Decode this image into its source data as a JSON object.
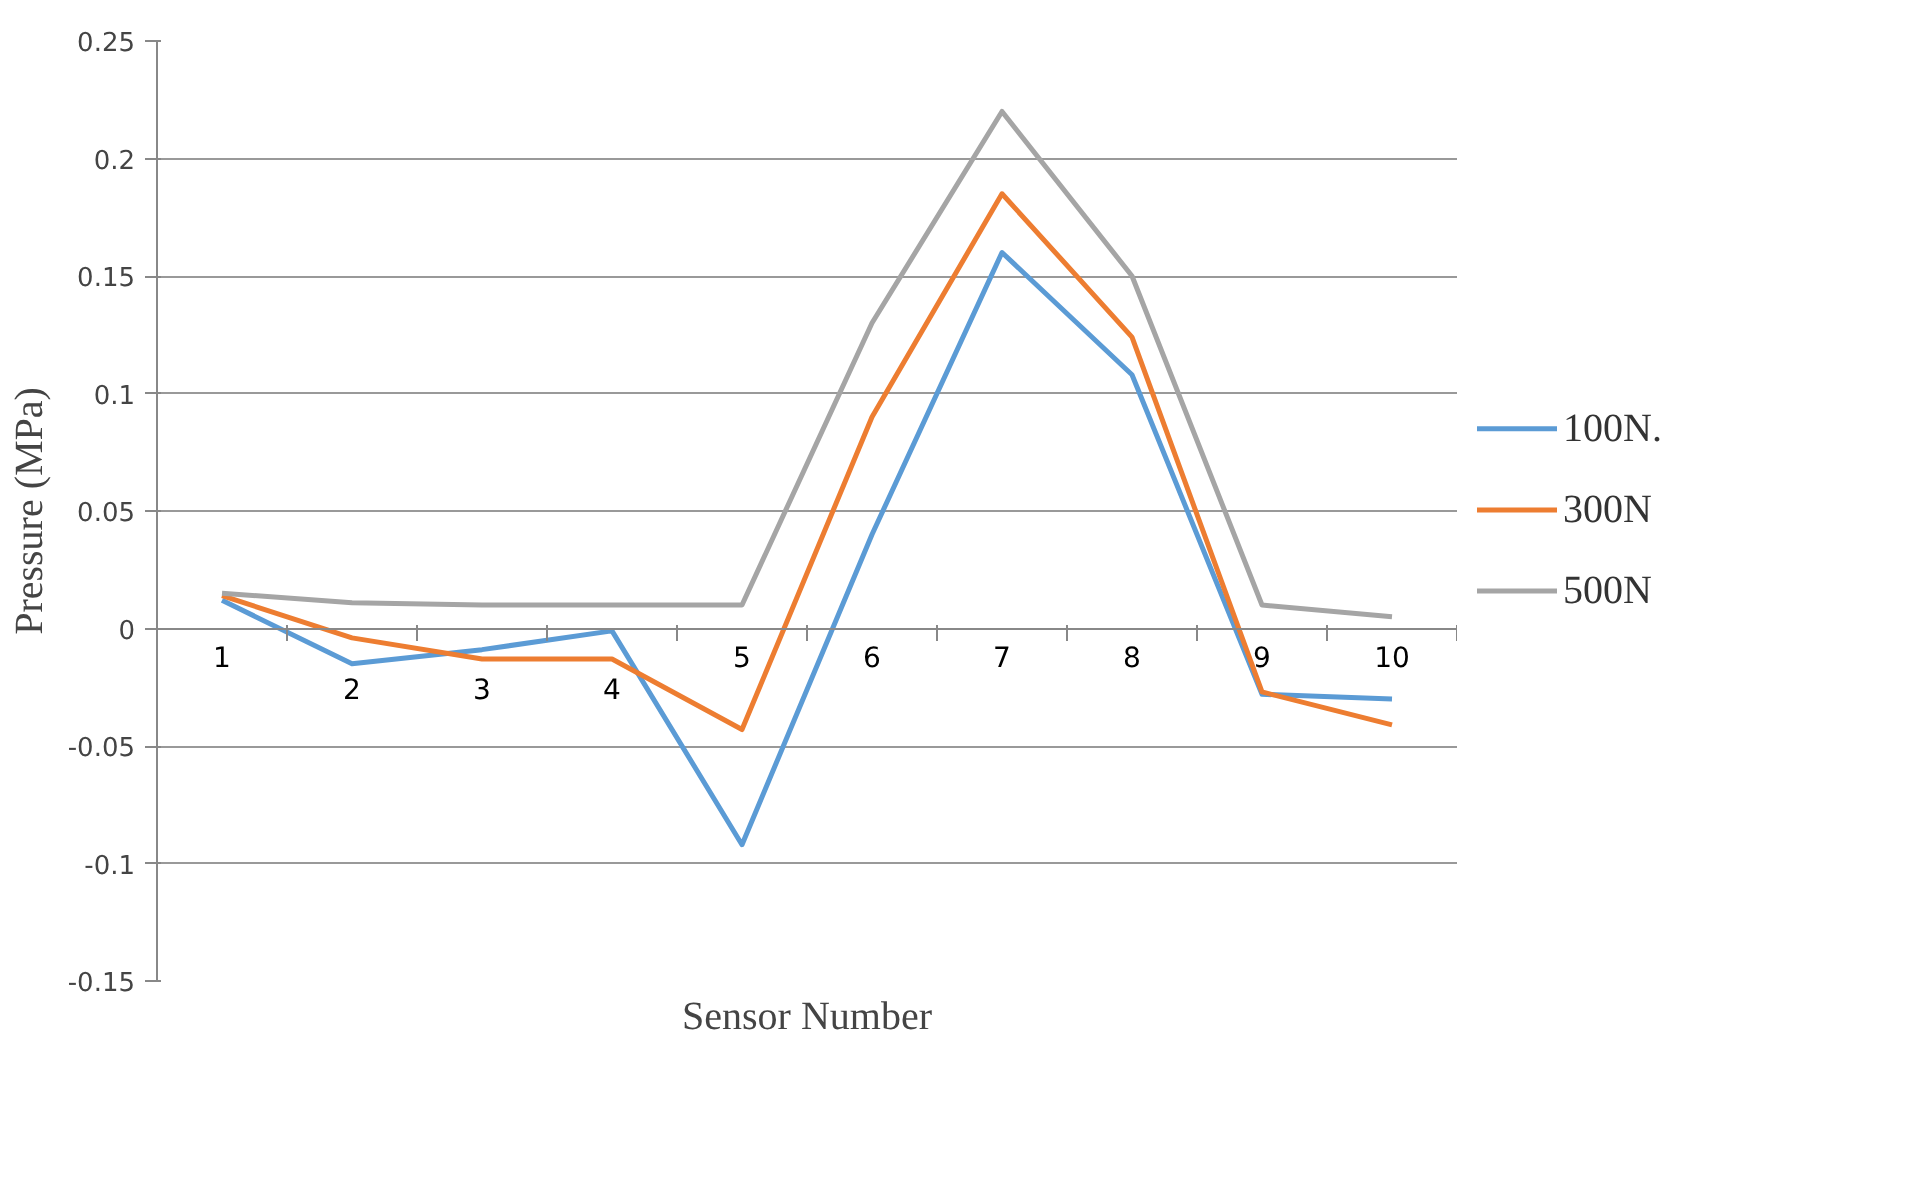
{
  "chart_data": {
    "type": "line",
    "xlabel": "Sensor Number",
    "ylabel": "Pressure (MPa)",
    "categories": [
      "1",
      "2",
      "3",
      "4",
      "5",
      "6",
      "7",
      "8",
      "9",
      "10"
    ],
    "series": [
      {
        "name": "100N.",
        "color": "#5b9bd5",
        "values": [
          0.012,
          -0.015,
          -0.009,
          -0.001,
          -0.092,
          0.04,
          0.16,
          0.108,
          -0.028,
          -0.03
        ]
      },
      {
        "name": "300N",
        "color": "#ed7d31",
        "values": [
          0.014,
          -0.004,
          -0.013,
          -0.013,
          -0.043,
          0.09,
          0.185,
          0.124,
          -0.027,
          -0.041
        ]
      },
      {
        "name": "500N",
        "color": "#a5a5a5",
        "values": [
          0.015,
          0.011,
          0.01,
          0.01,
          0.01,
          0.13,
          0.22,
          0.15,
          0.01,
          0.005
        ]
      }
    ],
    "ylim": [
      -0.15,
      0.25
    ],
    "yticks": [
      -0.15,
      -0.1,
      -0.05,
      0,
      0.05,
      0.1,
      0.15,
      0.2,
      0.25
    ],
    "grid": "y",
    "legend": "right",
    "marker": "none",
    "line_style": "solid"
  }
}
